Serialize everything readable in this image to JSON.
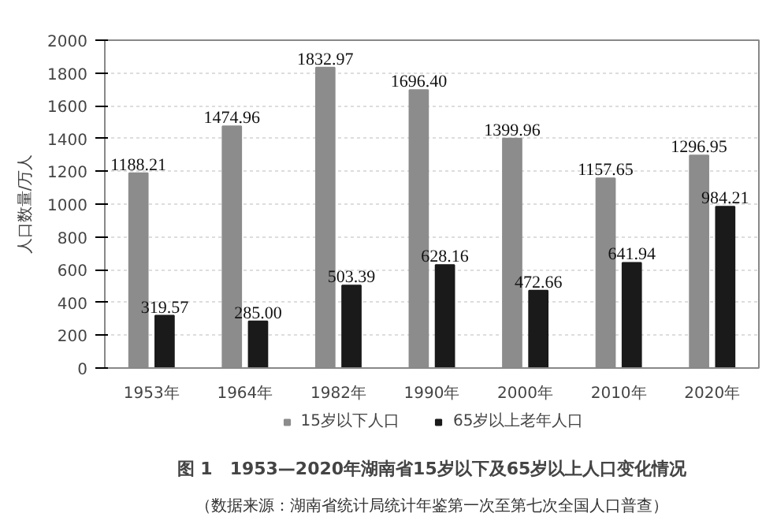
{
  "chart_data": {
    "type": "bar",
    "title": "图 1　1953—2020年湖南省15岁以下及65岁以上人口变化情况",
    "ylabel": "人口数量/万人",
    "annotations": [
      "（数据来源：湖南省统计局统计年鉴第一次至第七次全国人口普查）"
    ],
    "categories": [
      "1953年",
      "1964年",
      "1982年",
      "1990年",
      "2000年",
      "2010年",
      "2020年"
    ],
    "series": [
      {
        "name": "15岁以下人口",
        "color": "#8c8c8c",
        "values": [
          1188.21,
          1474.96,
          1832.97,
          1696.4,
          1399.96,
          1157.65,
          1296.95
        ],
        "value_labels": [
          "1188.21",
          "1474.96",
          "1832.97",
          "1696.40",
          "1399.96",
          "1157.65",
          "1296.95"
        ]
      },
      {
        "name": "65岁以上老年人口",
        "color": "#1a1a1a",
        "values": [
          319.57,
          285.0,
          503.39,
          628.16,
          472.66,
          641.94,
          984.21
        ],
        "value_labels": [
          "319.57",
          "285.00",
          "503.39",
          "628.16",
          "472.66",
          "641.94",
          "984.21"
        ]
      }
    ],
    "ylim": [
      0,
      2000
    ],
    "yticks": [
      0,
      200,
      400,
      600,
      800,
      1000,
      1200,
      1400,
      1600,
      1800,
      2000
    ],
    "grid": "y",
    "legend": "bottom"
  }
}
